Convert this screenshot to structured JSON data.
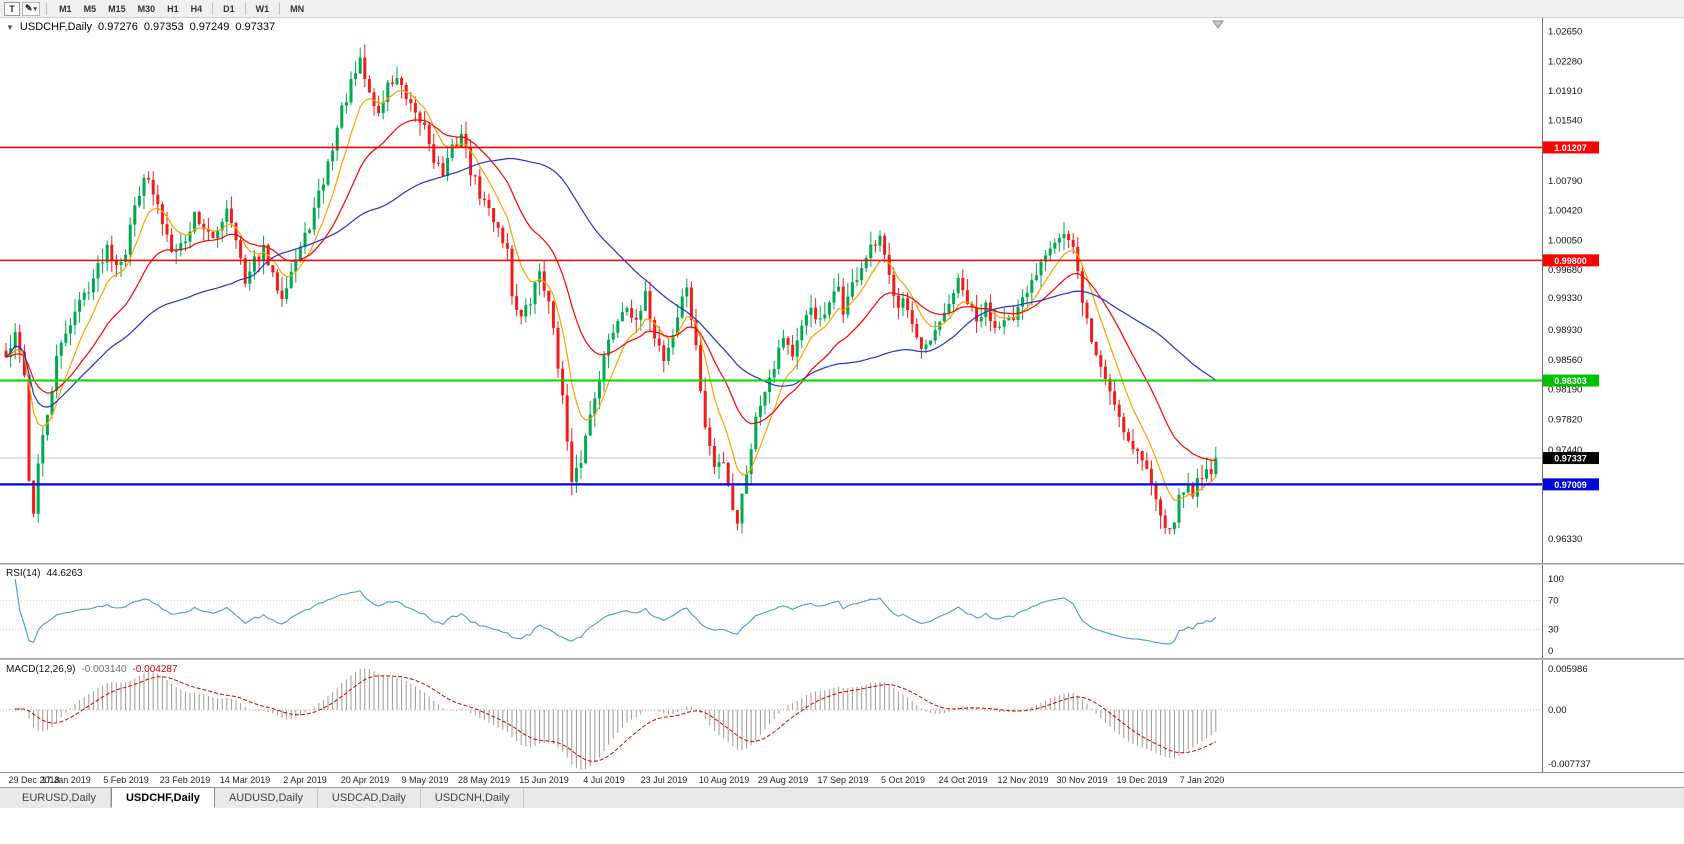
{
  "icons": {
    "triangle": "▼",
    "pencil": "✎",
    "caret": "▾",
    "shift_marker": "chart-shift-triangle"
  },
  "toolbar": {
    "tool_button_label": "T",
    "timeframes": [
      "M1",
      "M5",
      "M15",
      "M30",
      "H1",
      "H4",
      "D1",
      "W1",
      "MN"
    ]
  },
  "chart": {
    "symbol_period": "USDCHF,Daily",
    "ohlc": {
      "open": "0.97276",
      "high": "0.97353",
      "low": "0.97249",
      "close": "0.97337"
    }
  },
  "price_axis": {
    "ticks": [
      1.0265,
      1.0228,
      1.0191,
      1.0154,
      1.0079,
      1.0042,
      1.0005,
      0.9968,
      0.9933,
      0.9893,
      0.9856,
      0.9819,
      0.9782,
      0.9744,
      0.9633
    ],
    "tags": [
      {
        "label": "1.01207",
        "price": 1.01207,
        "color": "#FF0000"
      },
      {
        "label": "0.99800",
        "price": 0.998,
        "color": "#FF0000"
      },
      {
        "label": "0.98303",
        "price": 0.98303,
        "color": "#00C000"
      },
      {
        "label": "0.97337",
        "price": 0.97337,
        "color": "#000000"
      },
      {
        "label": "0.97009",
        "price": 0.97009,
        "color": "#0000E0"
      }
    ]
  },
  "chart_data": {
    "type": "candlestick",
    "symbol": "USDCHF",
    "period": "Daily",
    "candle_count": 264,
    "current_price": 0.97337,
    "price_path_anchors": [
      [
        0,
        0.9858
      ],
      [
        2,
        0.9885
      ],
      [
        4,
        0.9842
      ],
      [
        5,
        0.9705
      ],
      [
        6,
        0.9668
      ],
      [
        7,
        0.9725
      ],
      [
        9,
        0.9788
      ],
      [
        11,
        0.9855
      ],
      [
        13,
        0.9892
      ],
      [
        16,
        0.9928
      ],
      [
        19,
        0.9958
      ],
      [
        22,
        0.9998
      ],
      [
        24,
        0.9978
      ],
      [
        26,
        0.9992
      ],
      [
        28,
        1.0048
      ],
      [
        30,
        1.0088
      ],
      [
        32,
        1.0062
      ],
      [
        34,
        1.0028
      ],
      [
        36,
        0.9998
      ],
      [
        39,
        1.0002
      ],
      [
        41,
        1.0038
      ],
      [
        43,
        1.0022
      ],
      [
        45,
        1.0002
      ],
      [
        48,
        1.0048
      ],
      [
        50,
        1.0012
      ],
      [
        52,
        0.9948
      ],
      [
        54,
        0.9978
      ],
      [
        56,
        0.9992
      ],
      [
        58,
        0.9958
      ],
      [
        60,
        0.9938
      ],
      [
        62,
        0.9968
      ],
      [
        65,
        1.0008
      ],
      [
        67,
        1.0042
      ],
      [
        69,
        1.0078
      ],
      [
        71,
        1.0122
      ],
      [
        73,
        1.0168
      ],
      [
        75,
        1.0198
      ],
      [
        77,
        1.0226
      ],
      [
        79,
        1.0188
      ],
      [
        81,
        1.0162
      ],
      [
        83,
        1.0198
      ],
      [
        85,
        1.0208
      ],
      [
        87,
        1.0178
      ],
      [
        89,
        1.0158
      ],
      [
        91,
        1.0148
      ],
      [
        93,
        1.0108
      ],
      [
        95,
        1.0088
      ],
      [
        97,
        1.0118
      ],
      [
        99,
        1.0138
      ],
      [
        101,
        1.0092
      ],
      [
        103,
        1.0062
      ],
      [
        105,
        1.0042
      ],
      [
        107,
        1.0022
      ],
      [
        109,
        0.9992
      ],
      [
        110,
        0.9938
      ],
      [
        112,
        0.9908
      ],
      [
        114,
        0.9928
      ],
      [
        116,
        0.9968
      ],
      [
        117,
        0.9948
      ],
      [
        119,
        0.9898
      ],
      [
        121,
        0.9808
      ],
      [
        122,
        0.9752
      ],
      [
        123,
        0.9698
      ],
      [
        125,
        0.9732
      ],
      [
        127,
        0.9788
      ],
      [
        129,
        0.9838
      ],
      [
        131,
        0.9878
      ],
      [
        133,
        0.9908
      ],
      [
        135,
        0.9928
      ],
      [
        137,
        0.9898
      ],
      [
        139,
        0.9934
      ],
      [
        141,
        0.9888
      ],
      [
        143,
        0.9858
      ],
      [
        145,
        0.9888
      ],
      [
        147,
        0.9932
      ],
      [
        148,
        0.9948
      ],
      [
        150,
        0.9868
      ],
      [
        152,
        0.9772
      ],
      [
        154,
        0.9722
      ],
      [
        156,
        0.9732
      ],
      [
        158,
        0.9672
      ],
      [
        159,
        0.9655
      ],
      [
        161,
        0.9718
      ],
      [
        163,
        0.9782
      ],
      [
        165,
        0.9822
      ],
      [
        167,
        0.9852
      ],
      [
        169,
        0.9888
      ],
      [
        171,
        0.9862
      ],
      [
        173,
        0.9892
      ],
      [
        175,
        0.9922
      ],
      [
        177,
        0.9902
      ],
      [
        179,
        0.9922
      ],
      [
        181,
        0.9948
      ],
      [
        182,
        0.9918
      ],
      [
        184,
        0.9948
      ],
      [
        186,
        0.9972
      ],
      [
        188,
        0.9992
      ],
      [
        190,
        1.0005
      ],
      [
        192,
        0.9958
      ],
      [
        194,
        0.9928
      ],
      [
        195,
        0.9938
      ],
      [
        197,
        0.9898
      ],
      [
        199,
        0.9862
      ],
      [
        201,
        0.9878
      ],
      [
        203,
        0.9898
      ],
      [
        205,
        0.9928
      ],
      [
        207,
        0.9952
      ],
      [
        209,
        0.9928
      ],
      [
        211,
        0.9902
      ],
      [
        213,
        0.9922
      ],
      [
        215,
        0.9898
      ],
      [
        217,
        0.9912
      ],
      [
        219,
        0.9902
      ],
      [
        221,
        0.9928
      ],
      [
        223,
        0.9952
      ],
      [
        225,
        0.9982
      ],
      [
        227,
        1.0002
      ],
      [
        230,
        1.0012
      ],
      [
        232,
        0.9992
      ],
      [
        234,
        0.9932
      ],
      [
        236,
        0.9878
      ],
      [
        238,
        0.9848
      ],
      [
        240,
        0.9818
      ],
      [
        242,
        0.9788
      ],
      [
        244,
        0.9755
      ],
      [
        246,
        0.9742
      ],
      [
        248,
        0.9718
      ],
      [
        250,
        0.9688
      ],
      [
        252,
        0.9652
      ],
      [
        253,
        0.9638
      ],
      [
        255,
        0.9682
      ],
      [
        257,
        0.9702
      ],
      [
        258,
        0.9692
      ],
      [
        260,
        0.9715
      ],
      [
        261,
        0.9722
      ],
      [
        262,
        0.9718
      ],
      [
        263,
        0.97337
      ]
    ],
    "hlines": [
      {
        "price": 1.01207,
        "color": "#FF0000",
        "width": 1.6
      },
      {
        "price": 0.998,
        "color": "#FF0000",
        "width": 1.6
      },
      {
        "price": 0.98303,
        "color": "#00D800",
        "width": 2
      },
      {
        "price": 0.97009,
        "color": "#0000E0",
        "width": 2.2
      }
    ],
    "moving_averages": [
      {
        "name": "fast",
        "period": 8,
        "color": "#FFA000"
      },
      {
        "name": "mid",
        "period": 22,
        "color": "#FF0000"
      },
      {
        "name": "slow",
        "period": 50,
        "color": "#2233CC"
      }
    ],
    "x_labels": [
      "29 Dec 2018",
      "17 Jan 2019",
      "5 Feb 2019",
      "23 Feb 2019",
      "14 Mar 2019",
      "2 Apr 2019",
      "20 Apr 2019",
      "9 May 2019",
      "28 May 2019",
      "15 Jun 2019",
      "4 Jul 2019",
      "23 Jul 2019",
      "10 Aug 2019",
      "29 Aug 2019",
      "17 Sep 2019",
      "5 Oct 2019",
      "24 Oct 2019",
      "12 Nov 2019",
      "30 Nov 2019",
      "19 Dec 2019",
      "7 Jan 2020"
    ],
    "colors": {
      "candle_up": "#00A84F",
      "candle_down": "#EF1C1C",
      "current_price_line": "#c4c4c4"
    }
  },
  "rsi": {
    "label": "RSI(14)",
    "value": "44.6263",
    "period": 14,
    "levels": [
      100,
      70,
      30,
      0
    ],
    "dashed_levels": [
      70,
      30
    ],
    "color": "#4A9AD4"
  },
  "macd": {
    "label": "MACD(12,26,9)",
    "fast": 12,
    "slow": 26,
    "signal": 9,
    "macd_value": "-0.003140",
    "signal_value": "-0.004287",
    "axis_max": 0.005986,
    "axis_min": -0.007737,
    "axis_max_label": "0.005986",
    "axis_zero_label": "0.00",
    "axis_min_label": "-0.007737",
    "hist_color": "#9A9A9A",
    "signal_color": "#D40000"
  },
  "tabs": [
    {
      "label": "EURUSD,Daily",
      "active": false
    },
    {
      "label": "USDCHF,Daily",
      "active": true
    },
    {
      "label": "AUDUSD,Daily",
      "active": false
    },
    {
      "label": "USDCAD,Daily",
      "active": false
    },
    {
      "label": "USDCNH,Daily",
      "active": false
    }
  ]
}
